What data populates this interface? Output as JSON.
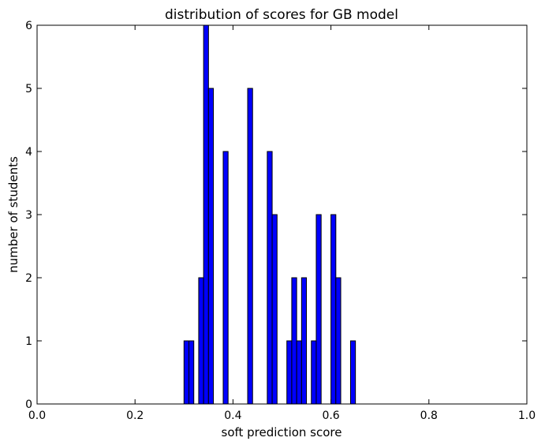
{
  "chart_data": {
    "type": "bar",
    "title": "distribution of scores for GB model",
    "xlabel": "soft prediction score",
    "ylabel": "number of students",
    "xlim": [
      0.0,
      1.0
    ],
    "ylim": [
      0,
      6
    ],
    "xticks": [
      "0.0",
      "0.2",
      "0.4",
      "0.6",
      "0.8",
      "1.0"
    ],
    "yticks": [
      "0",
      "1",
      "2",
      "3",
      "4",
      "5",
      "6"
    ],
    "bin_width": 0.01,
    "bar_color": "#0000ff",
    "grid": false,
    "bins": [
      {
        "x": 0.3,
        "count": 1
      },
      {
        "x": 0.31,
        "count": 1
      },
      {
        "x": 0.33,
        "count": 2
      },
      {
        "x": 0.34,
        "count": 6
      },
      {
        "x": 0.35,
        "count": 5
      },
      {
        "x": 0.38,
        "count": 4
      },
      {
        "x": 0.43,
        "count": 5
      },
      {
        "x": 0.47,
        "count": 4
      },
      {
        "x": 0.48,
        "count": 3
      },
      {
        "x": 0.51,
        "count": 1
      },
      {
        "x": 0.52,
        "count": 2
      },
      {
        "x": 0.53,
        "count": 1
      },
      {
        "x": 0.54,
        "count": 2
      },
      {
        "x": 0.56,
        "count": 1
      },
      {
        "x": 0.57,
        "count": 3
      },
      {
        "x": 0.6,
        "count": 3
      },
      {
        "x": 0.61,
        "count": 2
      },
      {
        "x": 0.64,
        "count": 1
      }
    ]
  }
}
